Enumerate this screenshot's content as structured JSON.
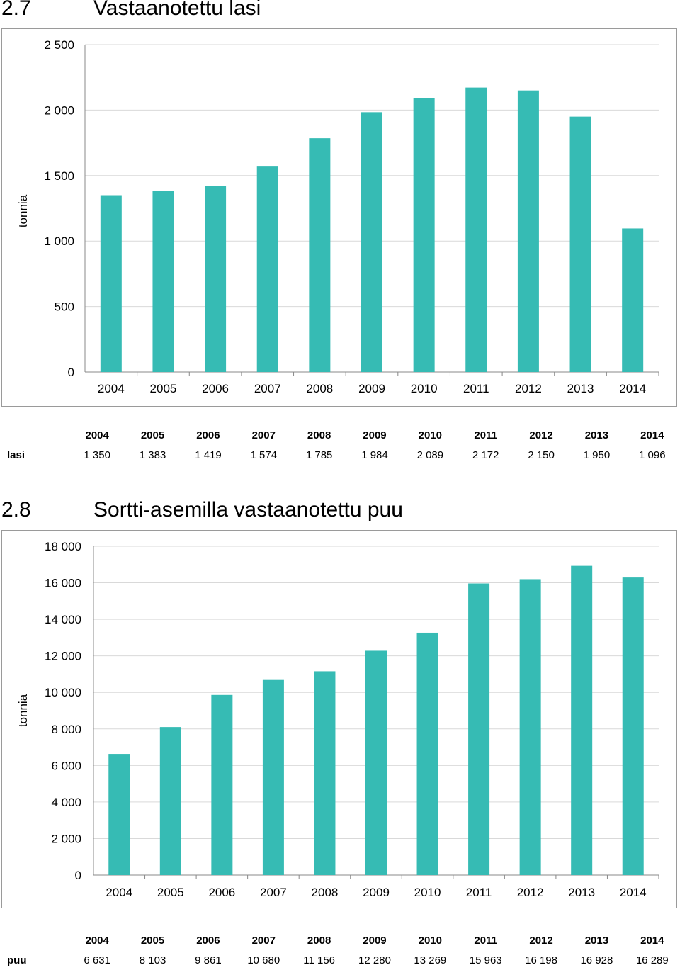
{
  "charts": [
    {
      "number": "2.7",
      "title": "Vastaanotettu lasi",
      "table_row_label": "lasi",
      "value_labels": [
        "1 350",
        "1 383",
        "1 419",
        "1 574",
        "1 785",
        "1 984",
        "2 089",
        "2 172",
        "2 150",
        "1 950",
        "1 096"
      ]
    },
    {
      "number": "2.8",
      "title": "Sortti-asemilla vastaanotettu puu",
      "table_row_label": "puu",
      "value_labels": [
        "6 631",
        "8 103",
        "9 861",
        "10 680",
        "11 156",
        "12 280",
        "13 269",
        "15 963",
        "16 198",
        "16 928",
        "16 289"
      ]
    }
  ],
  "chart_data": [
    {
      "type": "bar",
      "title": "Vastaanotettu lasi",
      "categories": [
        "2004",
        "2005",
        "2006",
        "2007",
        "2008",
        "2009",
        "2010",
        "2011",
        "2012",
        "2013",
        "2014"
      ],
      "values": [
        1350,
        1383,
        1419,
        1574,
        1785,
        1984,
        2089,
        2172,
        2150,
        1950,
        1096
      ],
      "ylabel": "tonnia",
      "ylim": [
        0,
        2500
      ],
      "yticks": [
        0,
        500,
        1000,
        1500,
        2000,
        2500
      ],
      "ytick_labels": [
        "0",
        "500",
        "1 000",
        "1 500",
        "2 000",
        "2 500"
      ],
      "bar_color": "#36BBB4",
      "grid": true,
      "legend": "none"
    },
    {
      "type": "bar",
      "title": "Sortti-asemilla vastaanotettu puu",
      "categories": [
        "2004",
        "2005",
        "2006",
        "2007",
        "2008",
        "2009",
        "2010",
        "2011",
        "2012",
        "2013",
        "2014"
      ],
      "values": [
        6631,
        8103,
        9861,
        10680,
        11156,
        12280,
        13269,
        15963,
        16198,
        16928,
        16289
      ],
      "ylabel": "tonnia",
      "ylim": [
        0,
        18000
      ],
      "yticks": [
        0,
        2000,
        4000,
        6000,
        8000,
        10000,
        12000,
        14000,
        16000,
        18000
      ],
      "ytick_labels": [
        "0",
        "2 000",
        "4 000",
        "6 000",
        "8 000",
        "10 000",
        "12 000",
        "14 000",
        "16 000",
        "18 000"
      ],
      "bar_color": "#36BBB4",
      "grid": true,
      "legend": "none"
    }
  ]
}
